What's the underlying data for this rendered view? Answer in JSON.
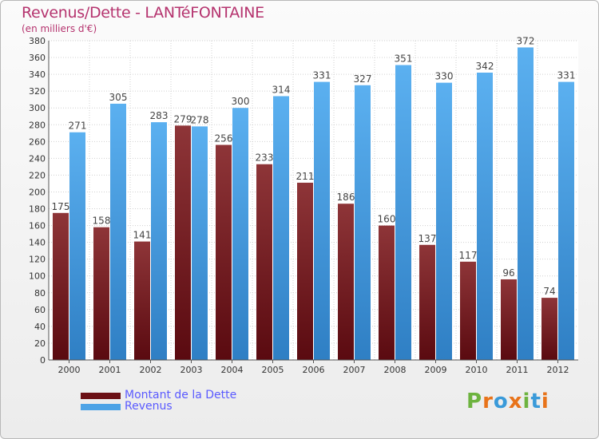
{
  "chart_data": {
    "type": "bar",
    "title": "Revenus/Dette - LANTéFONTAINE",
    "subtitle": "(en milliers d'€)",
    "categories": [
      "2000",
      "2001",
      "2002",
      "2003",
      "2004",
      "2005",
      "2006",
      "2007",
      "2008",
      "2009",
      "2010",
      "2011",
      "2012"
    ],
    "series": [
      {
        "name": "Montant de la Dette",
        "color": "#7a1f24",
        "values": [
          175,
          158,
          141,
          279,
          256,
          233,
          211,
          186,
          160,
          137,
          117,
          96,
          74
        ]
      },
      {
        "name": "Revenus",
        "color": "#4da3e6",
        "values": [
          271,
          305,
          283,
          278,
          300,
          314,
          331,
          327,
          351,
          330,
          342,
          372,
          331
        ]
      }
    ],
    "ylim": [
      0,
      380
    ],
    "ytick_step": 20,
    "grid": true,
    "legend_position": "bottom-left"
  },
  "logo": {
    "letters": [
      "P",
      "r",
      "o",
      "x",
      "i",
      "t",
      "i"
    ],
    "colors": [
      "#6db33f",
      "#e8731a",
      "#3a9ad9",
      "#e8731a",
      "#6db33f",
      "#3a9ad9",
      "#e8731a"
    ]
  }
}
